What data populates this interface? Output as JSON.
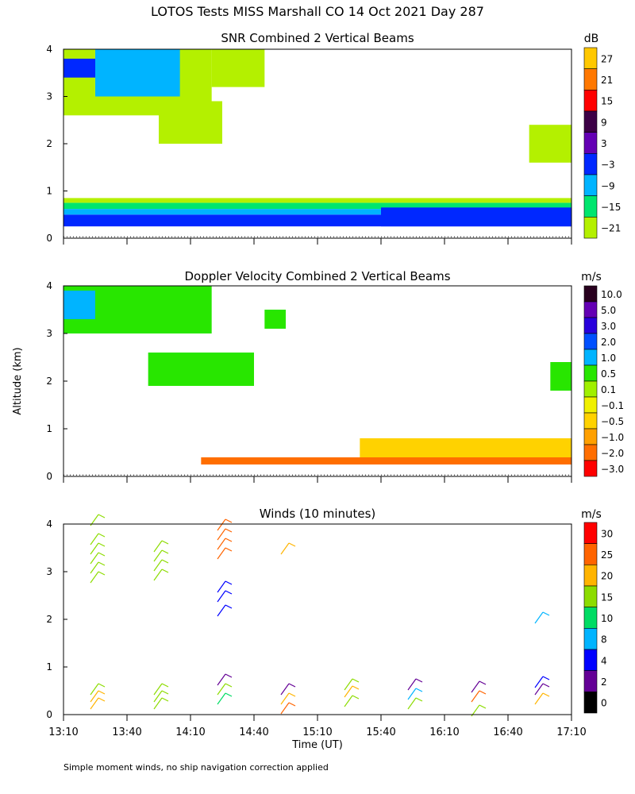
{
  "page_title": "LOTOS Tests MISS Marshall CO  14 Oct 2021 Day 287",
  "shared": {
    "ylabel": "Altitude (km)",
    "xlabel": "Time (UT)",
    "x_ticks": [
      "13:10",
      "13:40",
      "14:10",
      "14:40",
      "15:10",
      "15:40",
      "16:10",
      "16:40",
      "17:10"
    ],
    "y_ticks": [
      "0",
      "1",
      "2",
      "3",
      "4"
    ],
    "footnote": "Simple moment winds, no ship navigation correction applied"
  },
  "chart_data": [
    {
      "type": "heatmap",
      "title": "SNR Combined 2 Vertical Beams",
      "units": "dB",
      "xlim": [
        "13:10",
        "17:10"
      ],
      "ylim": [
        0,
        4
      ],
      "colorbar": {
        "labels": [
          "27",
          "21",
          "15",
          "9",
          "3",
          "−3",
          "−9",
          "−15",
          "−21"
        ],
        "colors": [
          "#ffc800",
          "#ff7800",
          "#ff0000",
          "#3c0046",
          "#6400b4",
          "#0028ff",
          "#00b4ff",
          "#00e66e",
          "#b4f000"
        ]
      },
      "regions": [
        {
          "t0": "13:10",
          "t1": "17:10",
          "z0": 0.25,
          "z1": 0.5,
          "level": "-3"
        },
        {
          "t0": "13:10",
          "t1": "17:10",
          "z0": 0.5,
          "z1": 0.62,
          "level": "-9"
        },
        {
          "t0": "13:10",
          "t1": "17:10",
          "z0": 0.62,
          "z1": 0.75,
          "level": "-15"
        },
        {
          "t0": "13:10",
          "t1": "17:10",
          "z0": 0.75,
          "z1": 0.85,
          "level": "-21"
        },
        {
          "t0": "15:40",
          "t1": "17:10",
          "z0": 0.25,
          "z1": 0.65,
          "level": "-3"
        },
        {
          "t0": "13:10",
          "t1": "14:20",
          "z0": 2.6,
          "z1": 4.0,
          "level": "-21"
        },
        {
          "t0": "13:10",
          "t1": "13:25",
          "z0": 3.4,
          "z1": 3.8,
          "level": "-3"
        },
        {
          "t0": "13:25",
          "t1": "14:05",
          "z0": 3.0,
          "z1": 4.0,
          "level": "-9"
        },
        {
          "t0": "13:55",
          "t1": "14:25",
          "z0": 2.0,
          "z1": 2.9,
          "level": "-21"
        },
        {
          "t0": "14:20",
          "t1": "14:45",
          "z0": 3.2,
          "z1": 4.0,
          "level": "-21"
        },
        {
          "t0": "16:50",
          "t1": "17:10",
          "z0": 1.6,
          "z1": 2.4,
          "level": "-21"
        }
      ]
    },
    {
      "type": "heatmap",
      "title": "Doppler Velocity Combined 2 Vertical Beams",
      "units": "m/s",
      "xlim": [
        "13:10",
        "17:10"
      ],
      "ylim": [
        0,
        4
      ],
      "colorbar": {
        "labels": [
          "10.0",
          "5.0",
          "3.0",
          "2.0",
          "1.0",
          "0.5",
          "0.1",
          "−0.1",
          "−0.5",
          "−1.0",
          "−2.0",
          "−3.0"
        ],
        "colors": [
          "#28001e",
          "#6400b4",
          "#2800dc",
          "#0050ff",
          "#00b4ff",
          "#28e600",
          "#a0f000",
          "#f0f000",
          "#ffd200",
          "#ffa000",
          "#ff6e00",
          "#ff0000"
        ]
      },
      "regions": [
        {
          "t0": "13:10",
          "t1": "14:20",
          "z0": 3.0,
          "z1": 4.0,
          "level": "0.5"
        },
        {
          "t0": "13:10",
          "t1": "13:25",
          "z0": 3.3,
          "z1": 3.9,
          "level": "1.0"
        },
        {
          "t0": "13:50",
          "t1": "14:40",
          "z0": 1.9,
          "z1": 2.6,
          "level": "0.5"
        },
        {
          "t0": "14:45",
          "t1": "14:55",
          "z0": 3.1,
          "z1": 3.5,
          "level": "0.5"
        },
        {
          "t0": "14:15",
          "t1": "17:10",
          "z0": 0.25,
          "z1": 0.4,
          "level": "-2.0"
        },
        {
          "t0": "15:30",
          "t1": "17:10",
          "z0": 0.4,
          "z1": 0.8,
          "level": "-0.5"
        },
        {
          "t0": "17:00",
          "t1": "17:10",
          "z0": 1.8,
          "z1": 2.4,
          "level": "0.5"
        }
      ]
    },
    {
      "type": "scatter",
      "title": "Winds (10 minutes)",
      "units": "m/s",
      "xlim": [
        "13:10",
        "17:10"
      ],
      "ylim": [
        0,
        4
      ],
      "colorbar": {
        "labels": [
          "30",
          "25",
          "20",
          "15",
          "10",
          "8",
          "4",
          "2",
          "0"
        ],
        "colors": [
          "#ff0000",
          "#ff6400",
          "#ffb400",
          "#8cdc00",
          "#00dc64",
          "#00b4ff",
          "#0000ff",
          "#640096",
          "#000000"
        ]
      },
      "profiles": [
        {
          "time": "13:25",
          "z": [
            2.9,
            3.1,
            3.3,
            3.5,
            3.7,
            4.1
          ],
          "speed": [
            15,
            15,
            15,
            15,
            15,
            15
          ]
        },
        {
          "time": "13:25",
          "z": [
            0.25,
            0.4,
            0.55
          ],
          "speed": [
            20,
            20,
            15
          ]
        },
        {
          "time": "13:55",
          "z": [
            2.95,
            3.15,
            3.35,
            3.55
          ],
          "speed": [
            15,
            15,
            15,
            15
          ]
        },
        {
          "time": "13:55",
          "z": [
            0.25,
            0.4,
            0.55
          ],
          "speed": [
            15,
            15,
            15
          ]
        },
        {
          "time": "14:25",
          "z": [
            3.4,
            3.6,
            3.8,
            4.0
          ],
          "speed": [
            25,
            25,
            25,
            25
          ]
        },
        {
          "time": "14:25",
          "z": [
            2.2,
            2.5,
            2.7
          ],
          "speed": [
            4,
            4,
            4
          ]
        },
        {
          "time": "14:25",
          "z": [
            0.35,
            0.55,
            0.75
          ],
          "speed": [
            10,
            15,
            2
          ]
        },
        {
          "time": "14:55",
          "z": [
            3.5
          ],
          "speed": [
            20
          ]
        },
        {
          "time": "14:55",
          "z": [
            0.15,
            0.35,
            0.55
          ],
          "speed": [
            25,
            20,
            2
          ]
        },
        {
          "time": "15:25",
          "z": [
            0.3,
            0.5,
            0.65
          ],
          "speed": [
            15,
            20,
            15
          ]
        },
        {
          "time": "15:55",
          "z": [
            0.25,
            0.45,
            0.65
          ],
          "speed": [
            15,
            8,
            2
          ]
        },
        {
          "time": "16:25",
          "z": [
            0.1,
            0.4,
            0.6
          ],
          "speed": [
            15,
            25,
            2
          ]
        },
        {
          "time": "16:55",
          "z": [
            0.35,
            0.55,
            0.7
          ],
          "speed": [
            20,
            2,
            4
          ]
        },
        {
          "time": "16:55",
          "z": [
            2.05
          ],
          "speed": [
            8
          ]
        }
      ]
    }
  ]
}
